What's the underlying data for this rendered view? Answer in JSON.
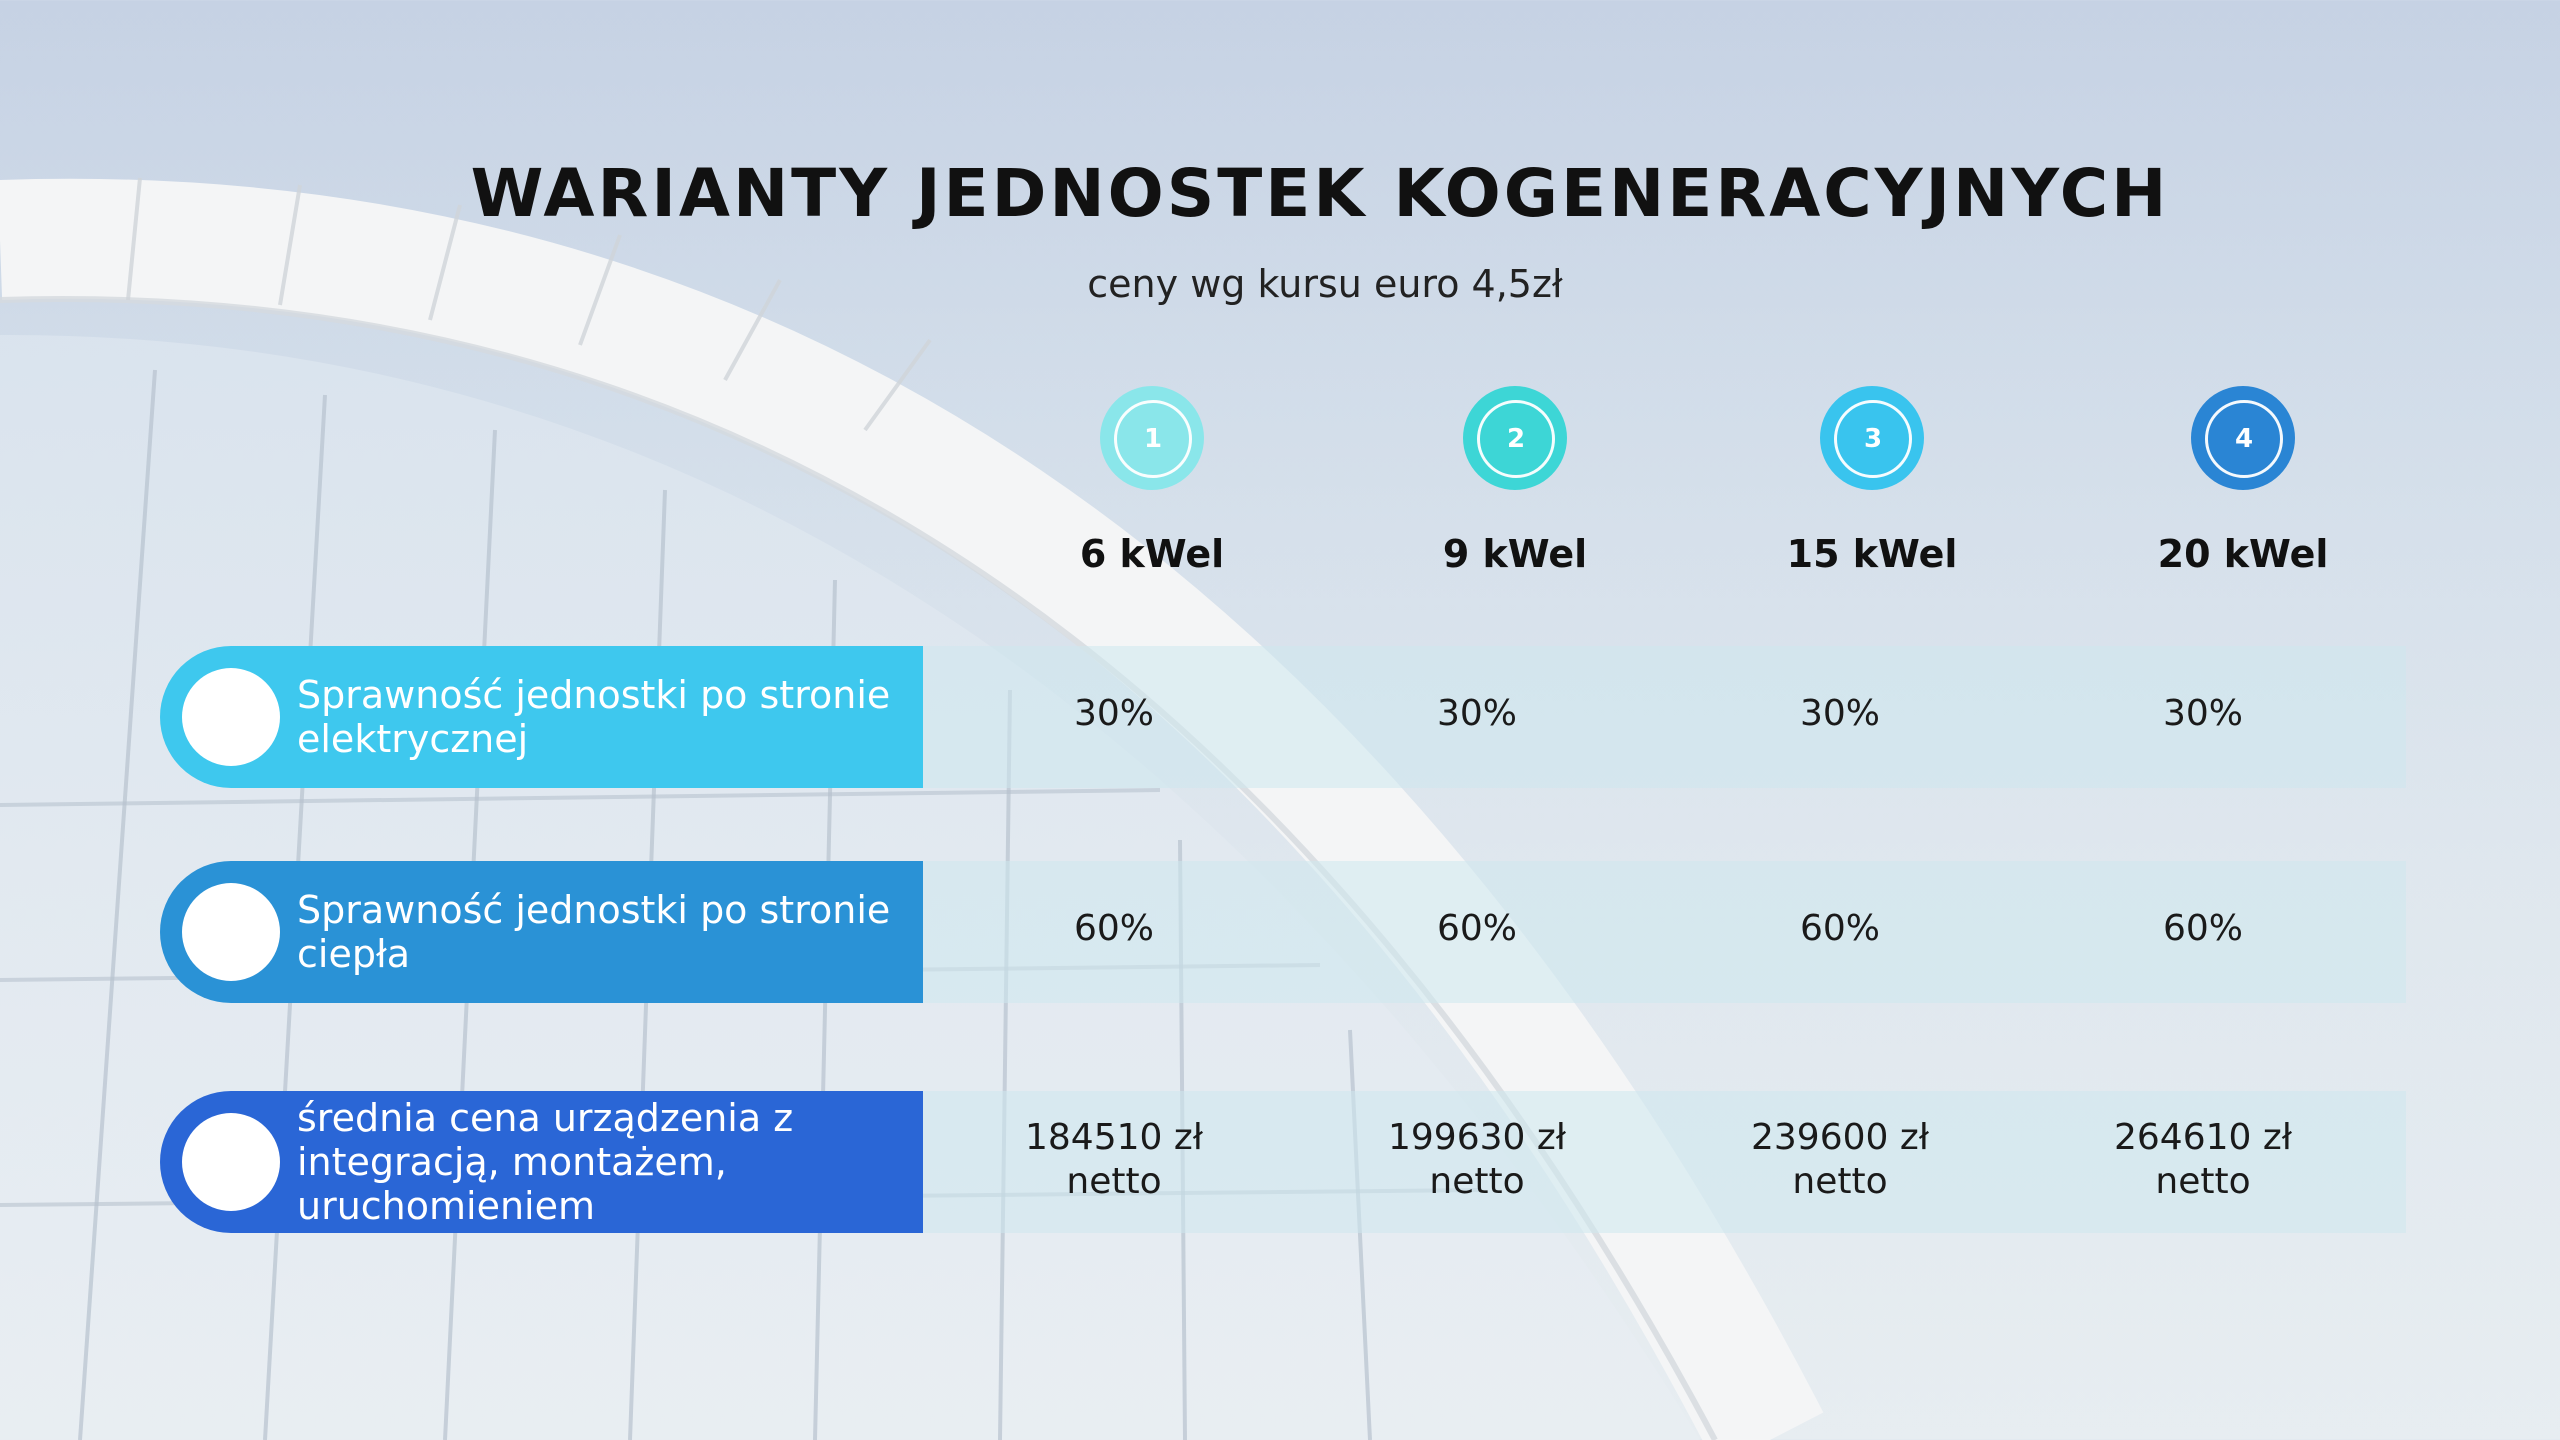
{
  "slide": {
    "title": "WARIANTY JEDNOSTEK KOGENERACYJNYCH",
    "subtitle": "ceny wg kursu euro 4,5zł"
  },
  "variants": [
    {
      "number": "1",
      "power": "6 kWel",
      "color": "#8ae6ea"
    },
    {
      "number": "2",
      "power": "9 kWel",
      "color": "#3dd6d6"
    },
    {
      "number": "3",
      "power": "15 kWel",
      "color": "#39c4ee"
    },
    {
      "number": "4",
      "power": "20 kWel",
      "color": "#2a85d4"
    }
  ],
  "rows": [
    {
      "label": "Sprawność jednostki po stronie\nelektrycznej",
      "color": "#3ec8ee",
      "values": [
        "30%",
        "30%",
        "30%",
        "30%"
      ]
    },
    {
      "label": "Sprawność jednostki po stronie\nciepła",
      "color": "#2a92d6",
      "values": [
        "60%",
        "60%",
        "60%",
        "60%"
      ]
    },
    {
      "label": "średnia cena urządzenia z\nintegracją, montażem,\nuruchomieniem",
      "color": "#2a66d6",
      "values": [
        "184510 zł\nnetto",
        "199630 zł\nnetto",
        "239600 zł\nnetto",
        "264610 zł\nnetto"
      ]
    }
  ]
}
